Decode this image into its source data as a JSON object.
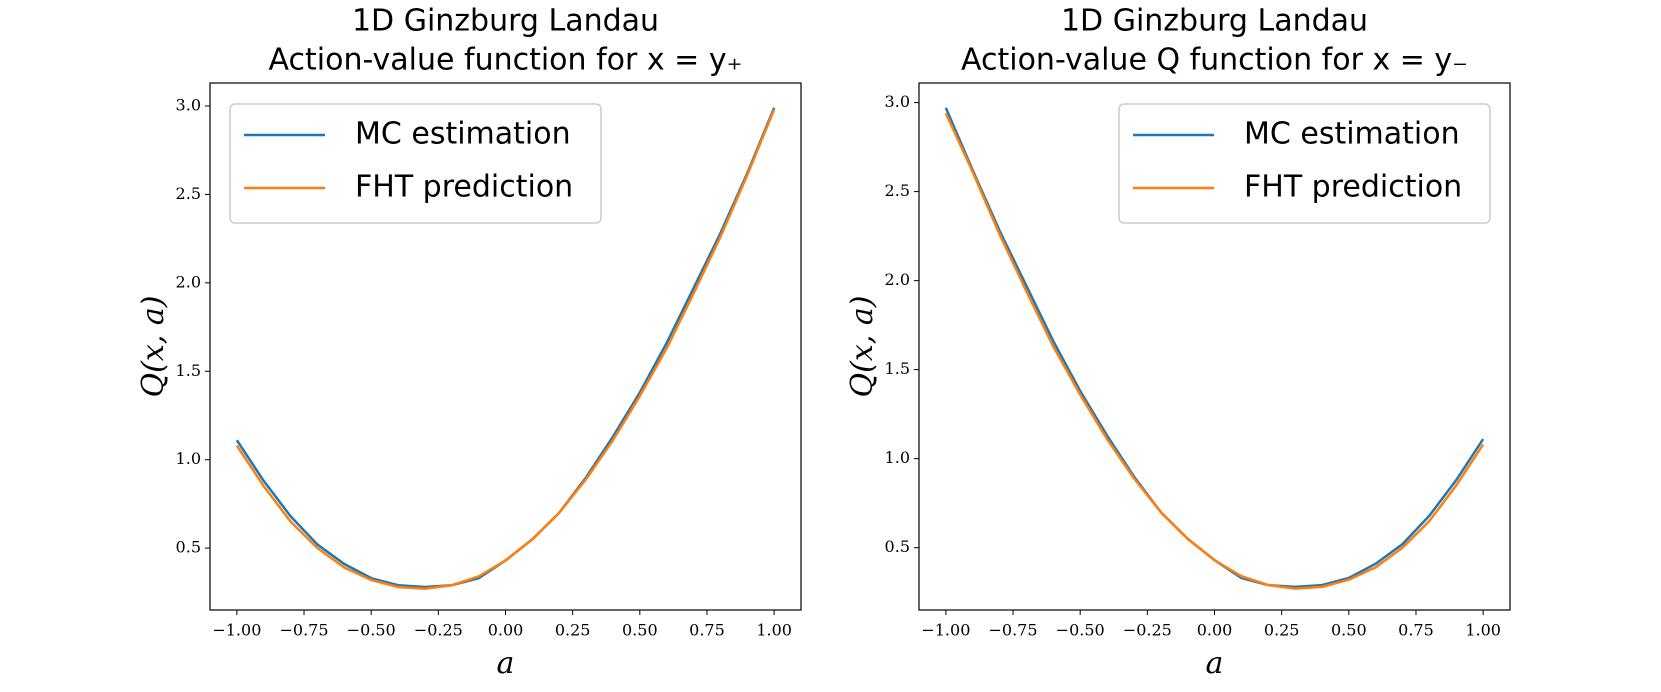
{
  "chart_data": [
    {
      "type": "line",
      "title": "1D Ginzburg Landau",
      "subtitle": "Action-value function for x = y₊",
      "xlabel": "a",
      "ylabel": "Q(x, a)",
      "legend": "upper left",
      "x": [
        -1.0,
        -0.9,
        -0.8,
        -0.7,
        -0.6,
        -0.5,
        -0.4,
        -0.3,
        -0.2,
        -0.1,
        0.0,
        0.1,
        0.2,
        0.3,
        0.4,
        0.5,
        0.6,
        0.7,
        0.8,
        0.9,
        1.0
      ],
      "series": [
        {
          "name": "MC estimation",
          "color": "#1f77b4",
          "values": [
            1.11,
            0.88,
            0.68,
            0.52,
            0.41,
            0.33,
            0.29,
            0.28,
            0.29,
            0.33,
            0.43,
            0.55,
            0.7,
            0.9,
            1.13,
            1.38,
            1.66,
            1.97,
            2.28,
            2.62,
            2.99
          ]
        },
        {
          "name": "FHT prediction",
          "color": "#ff7f0e",
          "values": [
            1.08,
            0.85,
            0.65,
            0.5,
            0.39,
            0.32,
            0.28,
            0.27,
            0.29,
            0.34,
            0.43,
            0.55,
            0.7,
            0.89,
            1.11,
            1.36,
            1.63,
            1.94,
            2.26,
            2.61,
            2.98
          ]
        }
      ],
      "xlim": [
        -1.1,
        1.1
      ],
      "ylim": [
        0.15,
        3.13
      ],
      "xticks": [
        {
          "value": -1,
          "label": "−1.00"
        },
        {
          "value": -0.75,
          "label": "−0.75"
        },
        {
          "value": -0.5,
          "label": "−0.50"
        },
        {
          "value": -0.25,
          "label": "−0.25"
        },
        {
          "value": 0,
          "label": "0.00"
        },
        {
          "value": 0.25,
          "label": "0.25"
        },
        {
          "value": 0.5,
          "label": "0.50"
        },
        {
          "value": 0.75,
          "label": "0.75"
        },
        {
          "value": 1,
          "label": "1.00"
        }
      ],
      "yticks": [
        0.5,
        {
          "value": 1,
          "label": "1.0"
        },
        1.5,
        {
          "value": 2,
          "label": "2.0"
        },
        2.5,
        {
          "value": 3,
          "label": "3.0"
        }
      ]
    },
    {
      "type": "line",
      "title": "1D Ginzburg Landau",
      "subtitle": "Action-value Q function for x = y₋",
      "xlabel": "a",
      "ylabel": "Q(x, a)",
      "legend": "upper right",
      "x": [
        -1.0,
        -0.9,
        -0.8,
        -0.7,
        -0.6,
        -0.5,
        -0.4,
        -0.3,
        -0.2,
        -0.1,
        0.0,
        0.1,
        0.2,
        0.3,
        0.4,
        0.5,
        0.6,
        0.7,
        0.8,
        0.9,
        1.0
      ],
      "series": [
        {
          "name": "MC estimation",
          "color": "#1f77b4",
          "values": [
            2.97,
            2.62,
            2.28,
            1.97,
            1.66,
            1.38,
            1.13,
            0.9,
            0.7,
            0.55,
            0.43,
            0.33,
            0.29,
            0.28,
            0.29,
            0.33,
            0.41,
            0.52,
            0.68,
            0.88,
            1.11
          ]
        },
        {
          "name": "FHT prediction",
          "color": "#ff7f0e",
          "values": [
            2.94,
            2.61,
            2.26,
            1.94,
            1.63,
            1.36,
            1.11,
            0.89,
            0.7,
            0.55,
            0.43,
            0.34,
            0.29,
            0.27,
            0.28,
            0.32,
            0.39,
            0.5,
            0.65,
            0.85,
            1.08
          ]
        }
      ],
      "xlim": [
        -1.1,
        1.1
      ],
      "ylim": [
        0.15,
        3.11
      ],
      "xticks": [
        {
          "value": -1,
          "label": "−1.00"
        },
        {
          "value": -0.75,
          "label": "−0.75"
        },
        {
          "value": -0.5,
          "label": "−0.50"
        },
        {
          "value": -0.25,
          "label": "−0.25"
        },
        {
          "value": 0,
          "label": "0.00"
        },
        {
          "value": 0.25,
          "label": "0.25"
        },
        {
          "value": 0.5,
          "label": "0.50"
        },
        {
          "value": 0.75,
          "label": "0.75"
        },
        {
          "value": 1,
          "label": "1.00"
        }
      ],
      "yticks": [
        0.5,
        {
          "value": 1,
          "label": "1.0"
        },
        1.5,
        {
          "value": 2,
          "label": "2.0"
        },
        2.5,
        {
          "value": 3,
          "label": "3.0"
        }
      ]
    }
  ]
}
